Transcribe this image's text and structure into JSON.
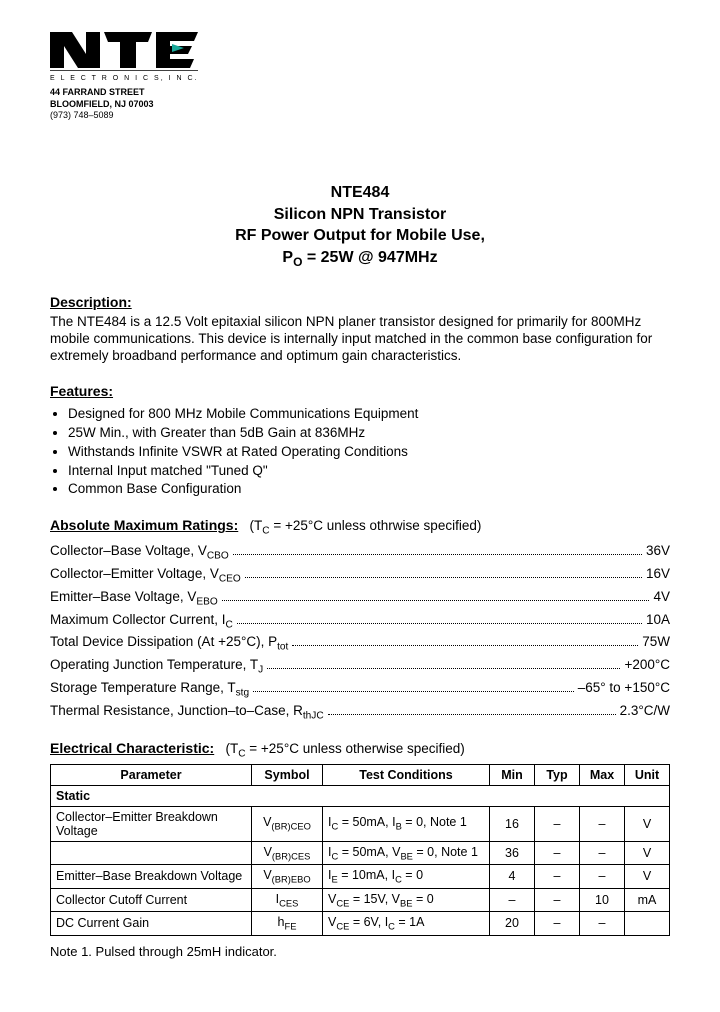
{
  "company": {
    "street": "44 FARRAND STREET",
    "city": "BLOOMFIELD,  NJ  07003",
    "phone": "(973) 748–5089"
  },
  "title": {
    "part": "NTE484",
    "line2": "Silicon NPN Transistor",
    "line3": "RF Power Output for Mobile Use,",
    "line4_pre": "P",
    "line4_sub": "O",
    "line4_post": " = 25W @ 947MHz"
  },
  "description": {
    "heading": "Description:",
    "text": "The NTE484 is a 12.5 Volt epitaxial silicon NPN planer transistor designed for primarily for 800MHz mobile communications.  This device is internally input matched in the common base configuration for extremely broadband performance and optimum gain characteristics."
  },
  "features": {
    "heading": "Features:",
    "items": [
      "Designed for 800 MHz Mobile Communications Equipment",
      "25W Min., with Greater than 5dB Gain at 836MHz",
      "Withstands Infinite VSWR at Rated Operating Conditions",
      "Internal Input matched \"Tuned Q\"",
      "Common Base Configuration"
    ]
  },
  "ratings": {
    "heading": "Absolute Maximum Ratings:",
    "cond": "(TC = +25°C unless othrwise specified)",
    "rows": [
      {
        "label": "Collector–Base Voltage, V",
        "sub": "CBO",
        "value": "36V"
      },
      {
        "label": "Collector–Emitter Voltage, V",
        "sub": "CEO",
        "value": "16V"
      },
      {
        "label": "Emitter–Base Voltage, V",
        "sub": "EBO",
        "value": "4V"
      },
      {
        "label": "Maximum Collector Current, I",
        "sub": "C",
        "value": "10A"
      },
      {
        "label": "Total Device Dissipation (At +25°C), P",
        "sub": "tot",
        "value": "75W"
      },
      {
        "label": "Operating Junction Temperature, T",
        "sub": "J",
        "value": "+200°C"
      },
      {
        "label": "Storage Temperature Range, T",
        "sub": "stg",
        "value": "–65° to +150°C"
      },
      {
        "label": "Thermal Resistance, Junction–to–Case, R",
        "sub": "thJC",
        "value": "2.3°C/W"
      }
    ]
  },
  "electrical": {
    "heading": "Electrical Characteristic:",
    "cond": "(TC = +25°C unless otherwise specified)",
    "headers": [
      "Parameter",
      "Symbol",
      "Test Conditions",
      "Min",
      "Typ",
      "Max",
      "Unit"
    ],
    "static_label": "Static",
    "rows": [
      {
        "param": "Collector–Emitter Breakdown Voltage",
        "symbol_pre": "V",
        "symbol_sub": "(BR)CEO",
        "cond_html": "I<sub>C</sub> = 50mA, I<sub>B</sub> = 0, Note 1",
        "min": "16",
        "typ": "–",
        "max": "–",
        "unit": "V"
      },
      {
        "param": "",
        "symbol_pre": "V",
        "symbol_sub": "(BR)CES",
        "cond_html": "I<sub>C</sub> = 50mA, V<sub>BE</sub> = 0, Note 1",
        "min": "36",
        "typ": "–",
        "max": "–",
        "unit": "V"
      },
      {
        "param": "Emitter–Base Breakdown Voltage",
        "symbol_pre": "V",
        "symbol_sub": "(BR)EBO",
        "cond_html": "I<sub>E</sub> = 10mA, I<sub>C</sub> = 0",
        "min": "4",
        "typ": "–",
        "max": "–",
        "unit": "V"
      },
      {
        "param": "Collector Cutoff Current",
        "symbol_pre": "I",
        "symbol_sub": "CES",
        "cond_html": "V<sub>CE</sub> = 15V, V<sub>BE</sub> = 0",
        "min": "–",
        "typ": "–",
        "max": "10",
        "unit": "mA"
      },
      {
        "param": "DC Current Gain",
        "symbol_pre": "h",
        "symbol_sub": "FE",
        "cond_html": "V<sub>CE</sub> = 6V, I<sub>C</sub> = 1A",
        "min": "20",
        "typ": "–",
        "max": "–",
        "unit": ""
      }
    ]
  },
  "note": "Note  1. Pulsed through 25mH indicator."
}
